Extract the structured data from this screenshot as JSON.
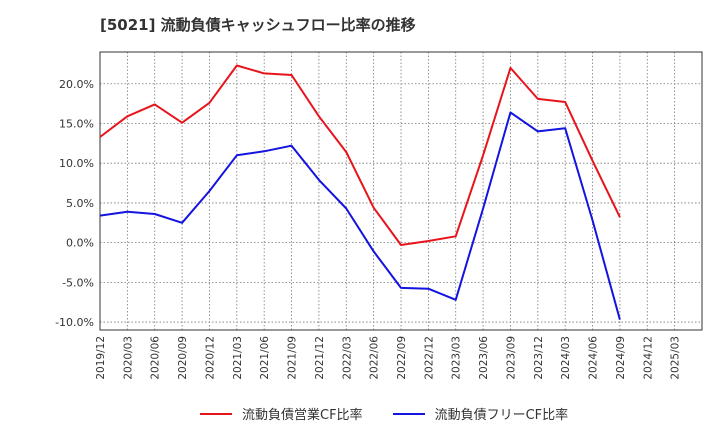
{
  "title": "[5021]  流動負債キャッシュフロー比率の推移",
  "chart_data": {
    "type": "line",
    "title": "[5021]  流動負債キャッシュフロー比率の推移",
    "xlabel": "",
    "ylabel": "",
    "x": [
      "2019/12",
      "2020/03",
      "2020/06",
      "2020/09",
      "2020/12",
      "2021/03",
      "2021/06",
      "2021/09",
      "2021/12",
      "2022/03",
      "2022/06",
      "2022/09",
      "2022/12",
      "2023/03",
      "2023/06",
      "2023/09",
      "2023/12",
      "2024/03",
      "2024/06",
      "2024/09",
      "2024/12",
      "2025/03"
    ],
    "yticks": [
      "-10.0%",
      "-5.0%",
      "0.0%",
      "5.0%",
      "10.0%",
      "15.0%",
      "20.0%"
    ],
    "ylim": [
      -11,
      24
    ],
    "grid": true,
    "legend_position": "bottom",
    "series": [
      {
        "name": "流動負債営業CF比率",
        "color": "#e8141c",
        "values": [
          13.3,
          15.9,
          17.4,
          15.1,
          17.6,
          22.3,
          21.3,
          21.1,
          15.9,
          11.4,
          4.4,
          -0.3,
          0.2,
          0.8,
          11.0,
          22.0,
          18.1,
          17.7,
          10.3,
          3.2,
          null,
          null
        ]
      },
      {
        "name": "流動負債フリーCF比率",
        "color": "#1414e0",
        "values": [
          3.4,
          3.9,
          3.6,
          2.5,
          6.5,
          11.0,
          11.5,
          12.2,
          7.9,
          4.3,
          -1.1,
          -5.7,
          -5.8,
          -7.2,
          4.3,
          16.4,
          14.0,
          14.4,
          2.8,
          -9.7,
          null,
          null
        ]
      }
    ]
  }
}
